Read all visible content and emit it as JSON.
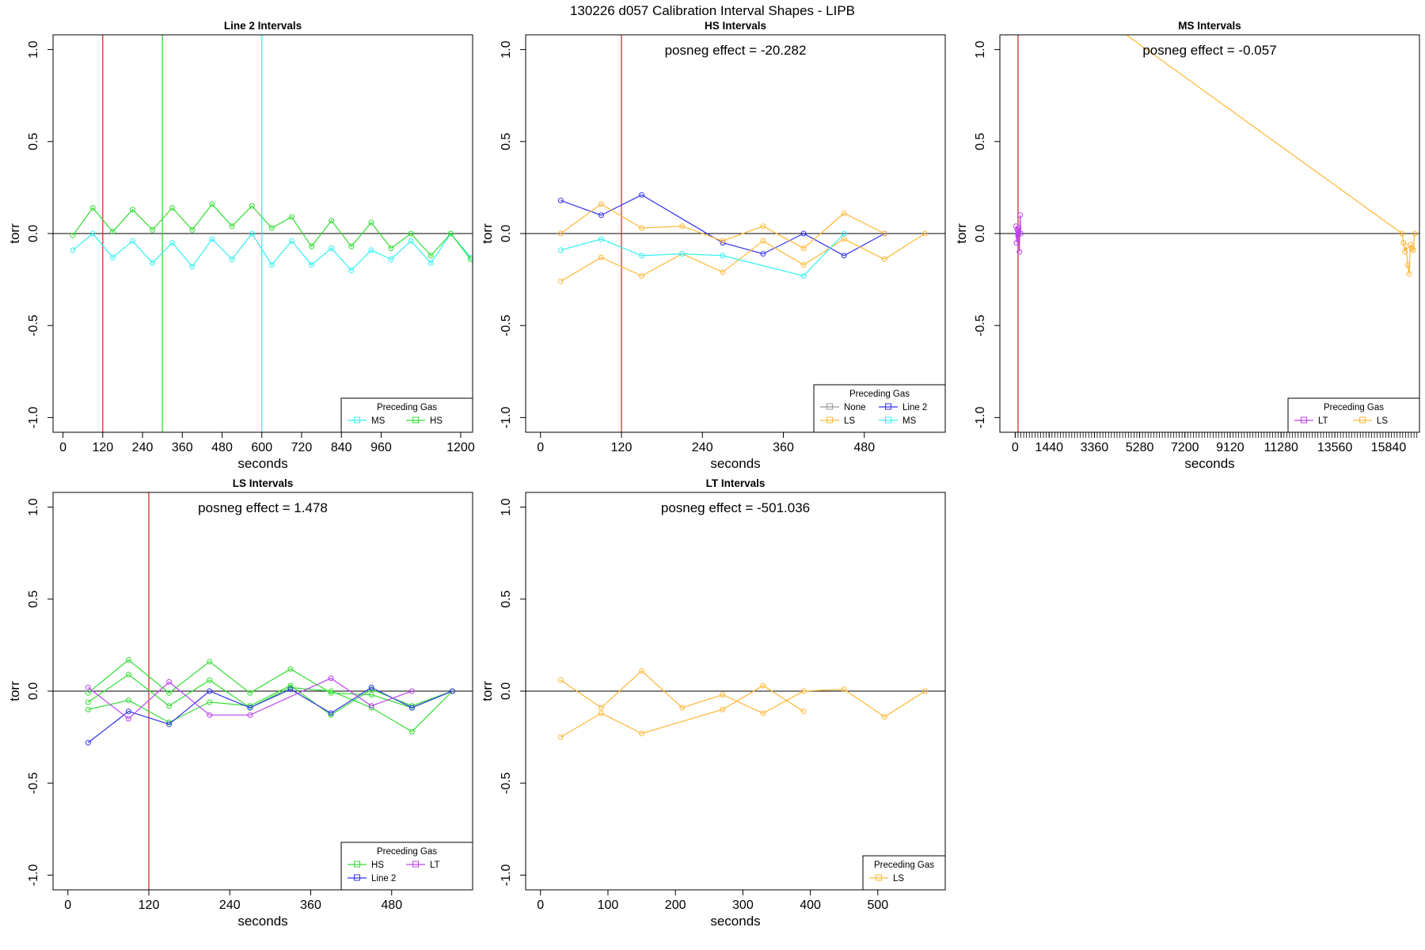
{
  "figure": {
    "title": "130226   d057   Calibration Interval Shapes - LIPB",
    "background": "#ffffff"
  },
  "colors": {
    "MS": "#33f0f0",
    "HS": "#33dd33",
    "LS": "#ffb733",
    "Line 2": "#3333ee",
    "LT": "#bb44ee",
    "None": "#999999",
    "vline_red": "#cc3333",
    "axis": "#000000"
  },
  "chart_data": [
    {
      "id": "line2",
      "type": "line",
      "title": "Line 2 Intervals",
      "xlabel": "seconds",
      "ylabel": "torr",
      "xlim": [
        -30,
        1236
      ],
      "ylim": [
        -1.08,
        1.08
      ],
      "xticks": [
        0,
        120,
        240,
        360,
        480,
        600,
        720,
        840,
        960,
        1200
      ],
      "yticks": [
        -1.0,
        -0.5,
        0.0,
        0.5,
        1.0
      ],
      "ytick_labels": [
        "-1.0",
        "-0.5",
        "0.0",
        "0.5",
        "1.0"
      ],
      "vlines": [
        {
          "x": 120,
          "color": "vline_red"
        },
        {
          "x": 300,
          "color": "HS"
        },
        {
          "x": 600,
          "color": "MS"
        }
      ],
      "annotation": "",
      "legend": {
        "title": "Preceding Gas",
        "position": "bottom-right",
        "ncol": 2,
        "entries": [
          "MS",
          "HS"
        ]
      },
      "series": [
        {
          "name": "MS",
          "color": "MS",
          "x": [
            30,
            90,
            150,
            210,
            270,
            330,
            390,
            450,
            510,
            570,
            630,
            690,
            750,
            810,
            870,
            930,
            990,
            1050,
            1110,
            1170,
            1230
          ],
          "y": [
            -0.09,
            0.0,
            -0.13,
            -0.04,
            -0.16,
            -0.05,
            -0.18,
            -0.03,
            -0.14,
            0.0,
            -0.17,
            -0.04,
            -0.17,
            -0.08,
            -0.2,
            -0.09,
            -0.14,
            -0.04,
            -0.16,
            0.0,
            -0.13
          ]
        },
        {
          "name": "HS",
          "color": "HS",
          "x": [
            30,
            90,
            150,
            210,
            270,
            330,
            390,
            450,
            510,
            570,
            630,
            690,
            750,
            810,
            870,
            930,
            990,
            1050,
            1110,
            1170,
            1230
          ],
          "y": [
            -0.01,
            0.14,
            0.01,
            0.13,
            0.02,
            0.14,
            0.02,
            0.16,
            0.04,
            0.15,
            0.03,
            0.09,
            -0.07,
            0.07,
            -0.07,
            0.06,
            -0.08,
            0.0,
            -0.12,
            0.0,
            -0.14
          ]
        }
      ]
    },
    {
      "id": "hs",
      "type": "line",
      "title": "HS Intervals",
      "xlabel": "seconds",
      "ylabel": "torr",
      "xlim": [
        -22,
        600
      ],
      "ylim": [
        -1.08,
        1.08
      ],
      "xticks": [
        0,
        120,
        240,
        360,
        480
      ],
      "yticks": [
        -1.0,
        -0.5,
        0.0,
        0.5,
        1.0
      ],
      "ytick_labels": [
        "-1.0",
        "-0.5",
        "0.0",
        "0.5",
        "1.0"
      ],
      "vlines": [
        {
          "x": 120,
          "color": "vline_red"
        }
      ],
      "annotation": "posneg effect = -20.282",
      "legend": {
        "title": "Preceding Gas",
        "position": "bottom-right",
        "ncol": 2,
        "entries": [
          "None",
          "Line 2",
          "LS",
          "MS"
        ]
      },
      "series": [
        {
          "name": "Line 2",
          "color": "Line 2",
          "x": [
            30,
            90,
            150,
            270,
            330,
            390,
            450,
            510
          ],
          "y": [
            0.18,
            0.1,
            0.21,
            -0.05,
            -0.11,
            0.0,
            -0.12,
            0.0
          ]
        },
        {
          "name": "LS",
          "color": "LS",
          "x": [
            30,
            90,
            150,
            210,
            270,
            330,
            390,
            450,
            510
          ],
          "y": [
            0.0,
            0.16,
            0.03,
            0.04,
            -0.04,
            0.04,
            -0.08,
            0.11,
            0.0
          ]
        },
        {
          "name": "LS",
          "color": "LS",
          "x": [
            30,
            90,
            150,
            210,
            270,
            330,
            390,
            450,
            510,
            570
          ],
          "y": [
            -0.26,
            -0.13,
            -0.23,
            -0.11,
            -0.21,
            -0.04,
            -0.17,
            -0.03,
            -0.14,
            0.0
          ]
        },
        {
          "name": "MS",
          "color": "MS",
          "x": [
            30,
            90,
            150,
            210,
            270,
            390,
            450
          ],
          "y": [
            -0.09,
            -0.03,
            -0.12,
            -0.11,
            -0.12,
            -0.23,
            0.0
          ]
        }
      ]
    },
    {
      "id": "ms",
      "type": "line",
      "title": "MS Intervals",
      "xlabel": "seconds",
      "ylabel": "torr",
      "xlim": [
        -650,
        17150
      ],
      "ylim": [
        -1.08,
        1.08
      ],
      "xticks": [
        0,
        1440,
        3360,
        5280,
        7200,
        9120,
        11280,
        13560,
        15840
      ],
      "minor_tick_step": 120,
      "yticks": [
        -1.0,
        -0.5,
        0.0,
        0.5,
        1.0
      ],
      "ytick_labels": [
        "-1.0",
        "-0.5",
        "0.0",
        "0.5",
        "1.0"
      ],
      "vlines": [
        {
          "x": 120,
          "color": "vline_red"
        }
      ],
      "annotation": "posneg effect = -0.057",
      "legend": {
        "title": "Preceding Gas",
        "position": "bottom-right",
        "ncol": 2,
        "entries": [
          "LT",
          "LS"
        ]
      },
      "series": [
        {
          "name": "LT",
          "color": "LT",
          "x": [
            30,
            60,
            90,
            120,
            150,
            180,
            210,
            240
          ],
          "y": [
            0.04,
            -0.05,
            0.02,
            -0.01,
            0.03,
            -0.1,
            0.1,
            0.0
          ]
        },
        {
          "name": "LS",
          "color": "LS",
          "x": [
            4500,
            16410,
            16470,
            16530,
            16590,
            16650,
            16710,
            16770,
            16830,
            16890,
            16950
          ],
          "y": [
            1.1,
            0.0,
            -0.05,
            -0.1,
            -0.07,
            -0.17,
            -0.22,
            -0.06,
            -0.08,
            -0.09,
            0.0
          ]
        }
      ]
    },
    {
      "id": "ls",
      "type": "line",
      "title": "LS Intervals",
      "xlabel": "seconds",
      "ylabel": "torr",
      "xlim": [
        -22,
        600
      ],
      "ylim": [
        -1.08,
        1.08
      ],
      "xticks": [
        0,
        120,
        240,
        360,
        480
      ],
      "yticks": [
        -1.0,
        -0.5,
        0.0,
        0.5,
        1.0
      ],
      "ytick_labels": [
        "-1.0",
        "-0.5",
        "0.0",
        "0.5",
        "1.0"
      ],
      "vlines": [
        {
          "x": 120,
          "color": "vline_red"
        }
      ],
      "annotation": "posneg effect = 1.478",
      "legend": {
        "title": "Preceding Gas",
        "position": "bottom-right",
        "ncol": 2,
        "entries": [
          "HS",
          "LT",
          "Line 2"
        ]
      },
      "series": [
        {
          "name": "HS",
          "color": "HS",
          "x": [
            30,
            90,
            150,
            210,
            270,
            330,
            390,
            450,
            510,
            570
          ],
          "y": [
            -0.01,
            0.17,
            -0.01,
            0.16,
            -0.01,
            0.12,
            -0.01,
            -0.02,
            -0.09,
            0.0
          ]
        },
        {
          "name": "HS",
          "color": "HS",
          "x": [
            30,
            90,
            150,
            210,
            270,
            330,
            390,
            450,
            510,
            570
          ],
          "y": [
            -0.06,
            0.09,
            -0.08,
            0.06,
            -0.09,
            0.02,
            0.0,
            -0.09,
            -0.22,
            0.0
          ]
        },
        {
          "name": "HS",
          "color": "HS",
          "x": [
            30,
            90,
            150,
            210,
            270,
            330,
            390,
            450,
            510,
            570
          ],
          "y": [
            -0.1,
            -0.05,
            -0.17,
            -0.06,
            -0.08,
            0.03,
            -0.13,
            0.01,
            -0.08,
            0.0
          ]
        },
        {
          "name": "Line 2",
          "color": "Line 2",
          "x": [
            30,
            90,
            150,
            210,
            270,
            330,
            390,
            450,
            510,
            570
          ],
          "y": [
            -0.28,
            -0.11,
            -0.18,
            0.0,
            -0.09,
            0.01,
            -0.12,
            0.02,
            -0.09,
            0.0
          ]
        },
        {
          "name": "LT",
          "color": "LT",
          "x": [
            30,
            90,
            150,
            210,
            270,
            390,
            450,
            510
          ],
          "y": [
            0.02,
            -0.15,
            0.05,
            -0.13,
            -0.13,
            0.07,
            -0.08,
            0.0
          ]
        }
      ]
    },
    {
      "id": "lt",
      "type": "line",
      "title": "LT Intervals",
      "xlabel": "seconds",
      "ylabel": "torr",
      "xlim": [
        -22,
        600
      ],
      "ylim": [
        -1.08,
        1.08
      ],
      "xticks": [
        0,
        100,
        200,
        300,
        400,
        500
      ],
      "yticks": [
        -1.0,
        -0.5,
        0.0,
        0.5,
        1.0
      ],
      "ytick_labels": [
        "-1.0",
        "-0.5",
        "0.0",
        "0.5",
        "1.0"
      ],
      "vlines": [],
      "annotation": "posneg effect = -501.036",
      "legend": {
        "title": "Preceding Gas",
        "position": "bottom-right",
        "ncol": 1,
        "entries": [
          "LS"
        ]
      },
      "series": [
        {
          "name": "LS",
          "color": "LS",
          "x": [
            30,
            90,
            150,
            210,
            270,
            330,
            390,
            450,
            510,
            570
          ],
          "y": [
            0.06,
            -0.09,
            0.11,
            -0.09,
            -0.02,
            -0.12,
            0.0,
            0.01,
            -0.14,
            0.0
          ]
        },
        {
          "name": "LS",
          "color": "LS",
          "x": [
            30,
            90,
            150,
            270,
            330,
            390
          ],
          "y": [
            -0.25,
            -0.12,
            -0.23,
            -0.1,
            0.03,
            -0.11
          ]
        }
      ]
    }
  ]
}
